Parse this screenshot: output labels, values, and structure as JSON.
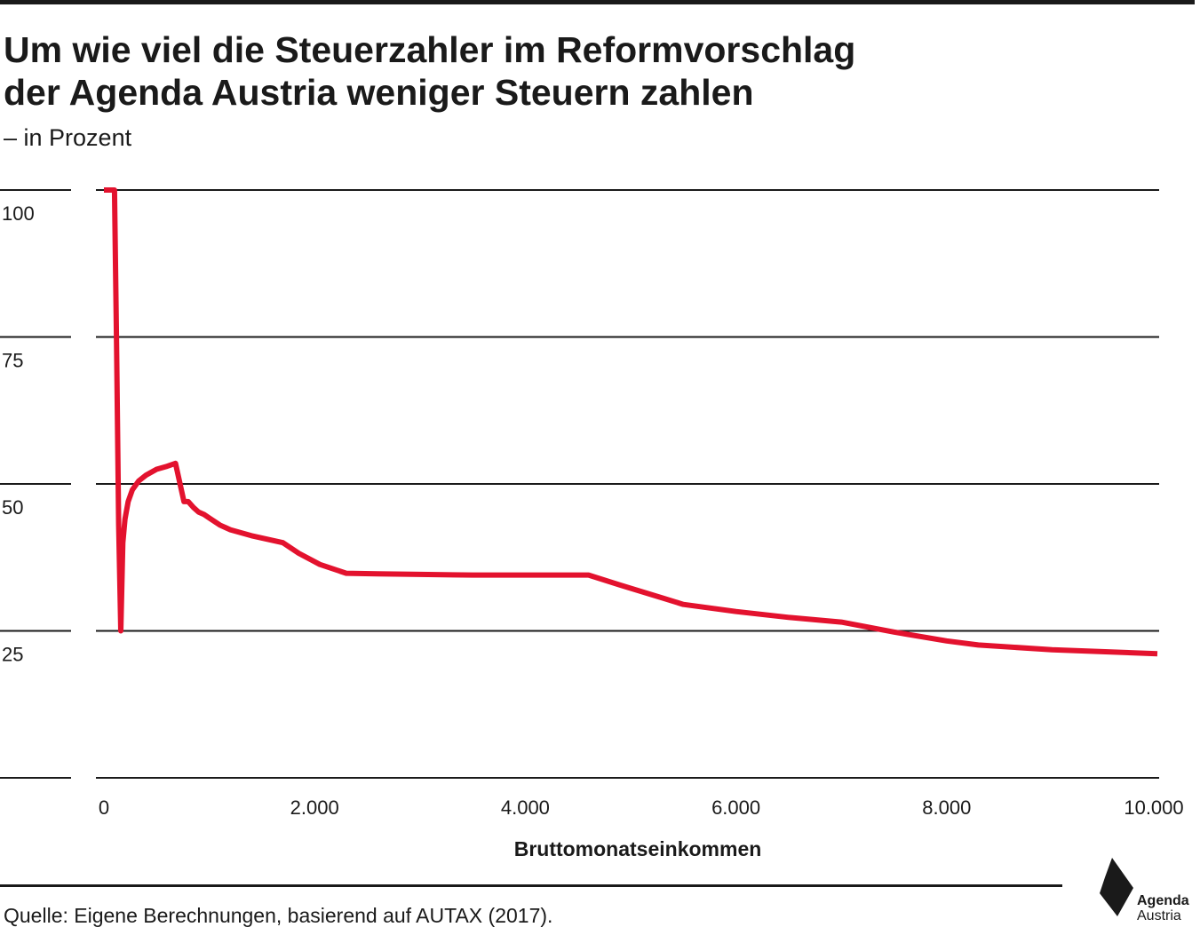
{
  "header": {
    "title_line1": "Um wie viel die Steuerzahler im Reformvorschlag",
    "title_line2": "der Agenda Austria weniger Steuern zahlen",
    "subtitle": "– in Prozent"
  },
  "footer": {
    "source": "Quelle: Eigene Berechnungen, basierend auf AUTAX (2017).",
    "logo_line1": "Agenda",
    "logo_line2": "Austria"
  },
  "colors": {
    "line": "#e3122e",
    "text": "#1a1a1a",
    "grid": "#1a1a1a"
  },
  "chart_data": {
    "type": "line",
    "title": "Um wie viel die Steuerzahler im Reformvorschlag der Agenda Austria weniger Steuern zahlen",
    "subtitle": "– in Prozent",
    "xlabel": "Bruttomonatseinkommen",
    "ylabel": "",
    "xlim": [
      0,
      10000
    ],
    "ylim": [
      0,
      100
    ],
    "x_ticks": [
      0,
      2000,
      4000,
      6000,
      8000,
      10000
    ],
    "x_tick_labels": [
      "0",
      "2.000",
      "4.000",
      "6.000",
      "8.000",
      "10.000"
    ],
    "y_ticks": [
      0,
      25,
      50,
      75,
      100
    ],
    "y_tick_labels": [
      "",
      "25",
      "50",
      "75",
      "100"
    ],
    "grid": true,
    "legend": "none",
    "series": [
      {
        "x": [
          0,
          50,
          100,
          120,
          140,
          160,
          180,
          200,
          230,
          270,
          330,
          400,
          500,
          600,
          680,
          760,
          800,
          850,
          900,
          950,
          1000,
          1100,
          1200,
          1400,
          1700,
          1850,
          2050,
          2300,
          2600,
          3000,
          3500,
          4000,
          4600,
          4900,
          5300,
          5500,
          6000,
          6500,
          7000,
          7500,
          8000,
          8300,
          9000,
          10000
        ],
        "values": [
          100,
          100,
          100,
          74,
          43,
          25,
          40,
          44,
          47,
          49,
          50.5,
          51.5,
          52.5,
          53,
          53.5,
          47,
          47,
          46,
          45.2,
          44.8,
          44.2,
          43,
          42.2,
          41.2,
          40,
          38.2,
          36.3,
          34.8,
          34.7,
          34.6,
          34.5,
          34.5,
          34.5,
          32.8,
          30.6,
          29.5,
          28.3,
          27.3,
          26.5,
          24.8,
          23.3,
          22.6,
          21.8,
          21.1
        ]
      }
    ]
  }
}
